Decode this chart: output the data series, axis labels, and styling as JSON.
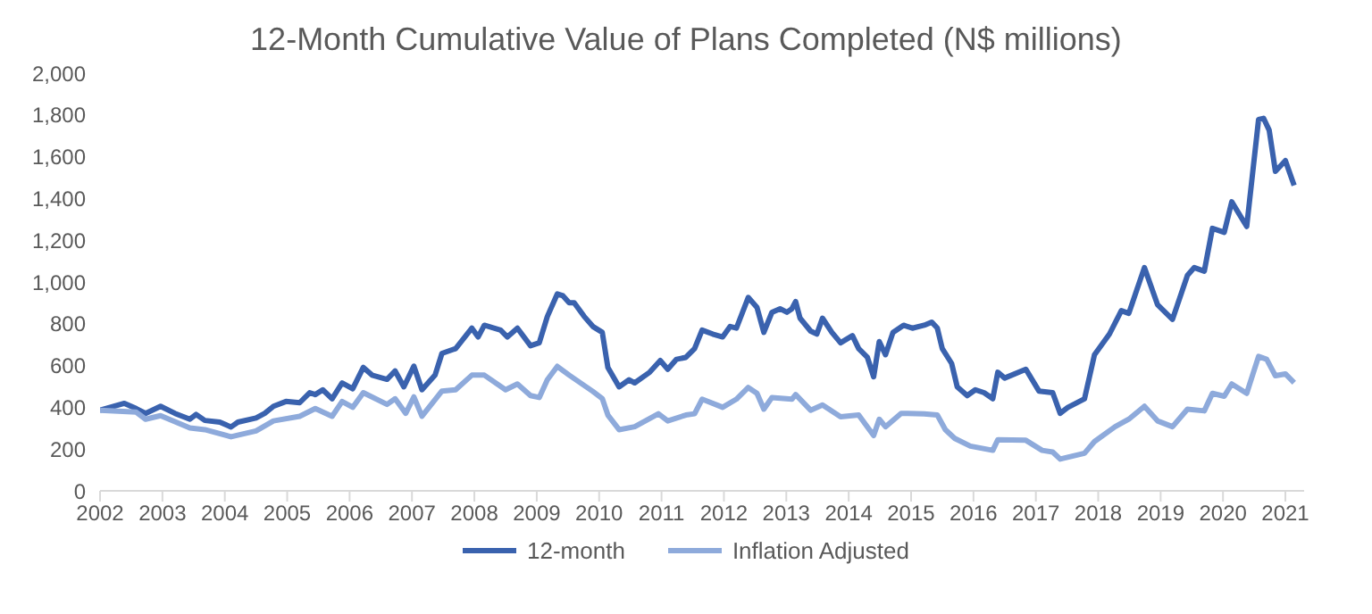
{
  "chart_data": {
    "type": "line",
    "title": "12-Month Cumulative Value of Plans Completed (N$ millions)",
    "xlim": [
      2002,
      2021.3
    ],
    "xticks": [
      2002,
      2003,
      2004,
      2005,
      2006,
      2007,
      2008,
      2009,
      2010,
      2011,
      2012,
      2013,
      2014,
      2015,
      2016,
      2017,
      2018,
      2019,
      2020,
      2021
    ],
    "ylim": [
      0,
      2000
    ],
    "yticks": [
      {
        "value": 0,
        "label": "0"
      },
      {
        "value": 200,
        "label": "200"
      },
      {
        "value": 400,
        "label": "400"
      },
      {
        "value": 600,
        "label": "600"
      },
      {
        "value": 800,
        "label": "800"
      },
      {
        "value": 1000,
        "label": "1,000"
      },
      {
        "value": 1200,
        "label": "1,200"
      },
      {
        "value": 1400,
        "label": "1,400"
      },
      {
        "value": 1600,
        "label": "1,600"
      },
      {
        "value": 1800,
        "label": "1,800"
      },
      {
        "value": 2000,
        "label": "2,000"
      }
    ],
    "grid": false,
    "legend": "bottom",
    "marker": "none",
    "line_style": "solid",
    "series": [
      {
        "name": "12-month",
        "color": "#3a62ae",
        "x": [
          2002.0,
          2002.39,
          2002.58,
          2002.73,
          2002.97,
          2003.2,
          2003.44,
          2003.54,
          2003.68,
          2003.92,
          2004.1,
          2004.21,
          2004.5,
          2004.64,
          2004.78,
          2004.98,
          2005.2,
          2005.36,
          2005.45,
          2005.57,
          2005.72,
          2005.88,
          2006.05,
          2006.22,
          2006.36,
          2006.6,
          2006.73,
          2006.87,
          2007.03,
          2007.16,
          2007.37,
          2007.48,
          2007.7,
          2007.96,
          2008.06,
          2008.16,
          2008.42,
          2008.53,
          2008.69,
          2008.9,
          2009.04,
          2009.17,
          2009.33,
          2009.42,
          2009.52,
          2009.6,
          2009.76,
          2009.9,
          2010.05,
          2010.14,
          2010.32,
          2010.48,
          2010.57,
          2010.81,
          2010.98,
          2011.1,
          2011.24,
          2011.39,
          2011.53,
          2011.65,
          2011.82,
          2011.98,
          2012.1,
          2012.2,
          2012.39,
          2012.53,
          2012.64,
          2012.77,
          2012.9,
          2013.01,
          2013.09,
          2013.15,
          2013.22,
          2013.39,
          2013.49,
          2013.58,
          2013.73,
          2013.87,
          2014.06,
          2014.16,
          2014.3,
          2014.4,
          2014.49,
          2014.59,
          2014.71,
          2014.88,
          2015.02,
          2015.21,
          2015.33,
          2015.42,
          2015.5,
          2015.65,
          2015.74,
          2015.9,
          2016.03,
          2016.17,
          2016.31,
          2016.39,
          2016.5,
          2016.84,
          2017.05,
          2017.27,
          2017.39,
          2017.51,
          2017.78,
          2017.94,
          2018.18,
          2018.37,
          2018.49,
          2018.74,
          2018.95,
          2019.19,
          2019.43,
          2019.54,
          2019.7,
          2019.83,
          2020.02,
          2020.14,
          2020.38,
          2020.57,
          2020.65,
          2020.74,
          2020.84,
          2021.0,
          2021.14
        ],
        "values": [
          386,
          419,
          394,
          371,
          405,
          371,
          343,
          366,
          337,
          329,
          306,
          329,
          349,
          371,
          405,
          428,
          422,
          470,
          461,
          484,
          441,
          517,
          489,
          591,
          554,
          534,
          574,
          498,
          597,
          484,
          554,
          658,
          681,
          779,
          737,
          793,
          770,
          737,
          779,
          695,
          709,
          835,
          943,
          934,
          901,
          901,
          835,
          787,
          759,
          591,
          498,
          532,
          517,
          568,
          624,
          582,
          630,
          639,
          681,
          770,
          751,
          737,
          787,
          779,
          926,
          878,
          759,
          855,
          872,
          855,
          872,
          906,
          827,
          765,
          751,
          827,
          759,
          709,
          743,
          681,
          639,
          546,
          715,
          652,
          759,
          793,
          779,
          793,
          808,
          780,
          681,
          610,
          498,
          456,
          484,
          470,
          441,
          568,
          540,
          582,
          478,
          470,
          371,
          399,
          441,
          652,
          751,
          863,
          850,
          1069,
          892,
          821,
          1032,
          1069,
          1052,
          1257,
          1238,
          1384,
          1266,
          1778,
          1784,
          1727,
          1530,
          1581,
          1463
        ]
      },
      {
        "name": "Inflation Adjusted",
        "color": "#8eaadb",
        "x": [
          2002.0,
          2002.58,
          2002.73,
          2002.97,
          2003.44,
          2003.68,
          2004.1,
          2004.5,
          2004.78,
          2005.2,
          2005.45,
          2005.72,
          2005.88,
          2006.05,
          2006.22,
          2006.6,
          2006.73,
          2006.9,
          2007.03,
          2007.16,
          2007.48,
          2007.7,
          2007.96,
          2008.16,
          2008.5,
          2008.69,
          2008.9,
          2009.04,
          2009.17,
          2009.33,
          2009.52,
          2009.9,
          2010.05,
          2010.14,
          2010.32,
          2010.57,
          2010.95,
          2011.1,
          2011.39,
          2011.53,
          2011.65,
          2011.98,
          2012.2,
          2012.39,
          2012.53,
          2012.64,
          2012.77,
          2013.09,
          2013.15,
          2013.39,
          2013.58,
          2013.87,
          2014.16,
          2014.4,
          2014.49,
          2014.59,
          2014.84,
          2015.21,
          2015.42,
          2015.55,
          2015.7,
          2015.95,
          2016.31,
          2016.39,
          2016.84,
          2017.1,
          2017.27,
          2017.39,
          2017.78,
          2017.94,
          2018.27,
          2018.49,
          2018.74,
          2018.95,
          2019.19,
          2019.43,
          2019.7,
          2019.83,
          2020.02,
          2020.14,
          2020.38,
          2020.57,
          2020.7,
          2020.84,
          2021.0,
          2021.14
        ],
        "values": [
          386,
          377,
          343,
          360,
          301,
          293,
          259,
          287,
          335,
          357,
          394,
          357,
          428,
          400,
          470,
          414,
          441,
          371,
          450,
          357,
          478,
          484,
          554,
          554,
          484,
          512,
          456,
          447,
          532,
          596,
          554,
          476,
          442,
          363,
          293,
          307,
          369,
          335,
          363,
          369,
          439,
          400,
          439,
          495,
          467,
          391,
          447,
          439,
          461,
          386,
          411,
          355,
          363,
          265,
          343,
          307,
          371,
          369,
          363,
          293,
          251,
          214,
          194,
          245,
          242,
          194,
          186,
          152,
          180,
          236,
          307,
          343,
          405,
          335,
          307,
          391,
          383,
          467,
          453,
          512,
          467,
          644,
          630,
          551,
          560,
          518
        ]
      }
    ]
  }
}
